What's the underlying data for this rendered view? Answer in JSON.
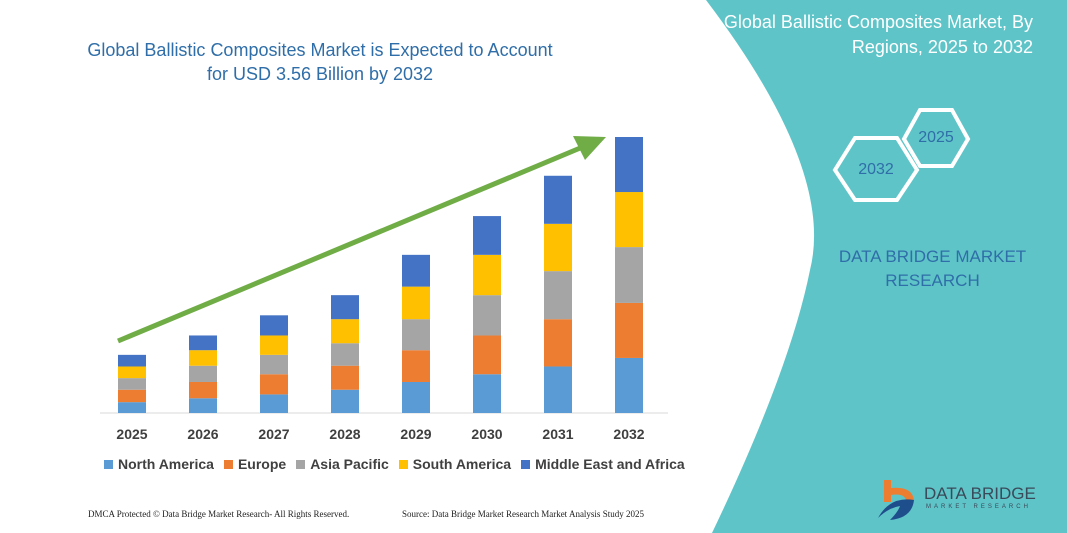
{
  "header": {
    "title": "Global Ballistic Composites Market is Expected to Account for USD 3.56 Billion by 2032"
  },
  "side_panel": {
    "title": "Global Ballistic Composites Market, By Regions, 2025 to 2032",
    "hex_start": "2025",
    "hex_end": "2032",
    "brand": "DATA BRIDGE MARKET RESEARCH",
    "color": "#5fc4c8"
  },
  "chart_data": {
    "type": "bar",
    "stacked": true,
    "title": "Global Ballistic Composites Market is Expected to Account for USD 3.56 Billion by 2032",
    "xlabel": "",
    "ylabel": "",
    "unit": "USD Billion (estimated)",
    "categories": [
      "2025",
      "2026",
      "2027",
      "2028",
      "2029",
      "2030",
      "2031",
      "2032"
    ],
    "ylim": [
      0,
      3.56
    ],
    "grid": false,
    "legend": "bottom",
    "trend_arrow": true,
    "series": [
      {
        "name": "North America",
        "color": "#5b9bd5",
        "values": [
          0.14,
          0.19,
          0.24,
          0.3,
          0.4,
          0.5,
          0.6,
          0.71
        ]
      },
      {
        "name": "Europe",
        "color": "#ed7d31",
        "values": [
          0.16,
          0.21,
          0.26,
          0.31,
          0.41,
          0.5,
          0.61,
          0.71
        ]
      },
      {
        "name": "Asia Pacific",
        "color": "#a5a5a5",
        "values": [
          0.15,
          0.21,
          0.25,
          0.29,
          0.4,
          0.52,
          0.62,
          0.72
        ]
      },
      {
        "name": "South America",
        "color": "#ffc000",
        "values": [
          0.15,
          0.2,
          0.25,
          0.31,
          0.42,
          0.52,
          0.61,
          0.71
        ]
      },
      {
        "name": "Middle East and Africa",
        "color": "#4472c4",
        "values": [
          0.15,
          0.19,
          0.26,
          0.31,
          0.41,
          0.5,
          0.62,
          0.71
        ]
      }
    ],
    "arrow_color": "#70ad47"
  },
  "footer": {
    "left": "DMCA Protected © Data Bridge Market Research- All Rights Reserved.",
    "right": "Source: Data Bridge Market Research  Market Analysis Study 2025"
  },
  "logo": {
    "name": "DATA BRIDGE",
    "tagline": "MARKET RESEARCH"
  }
}
